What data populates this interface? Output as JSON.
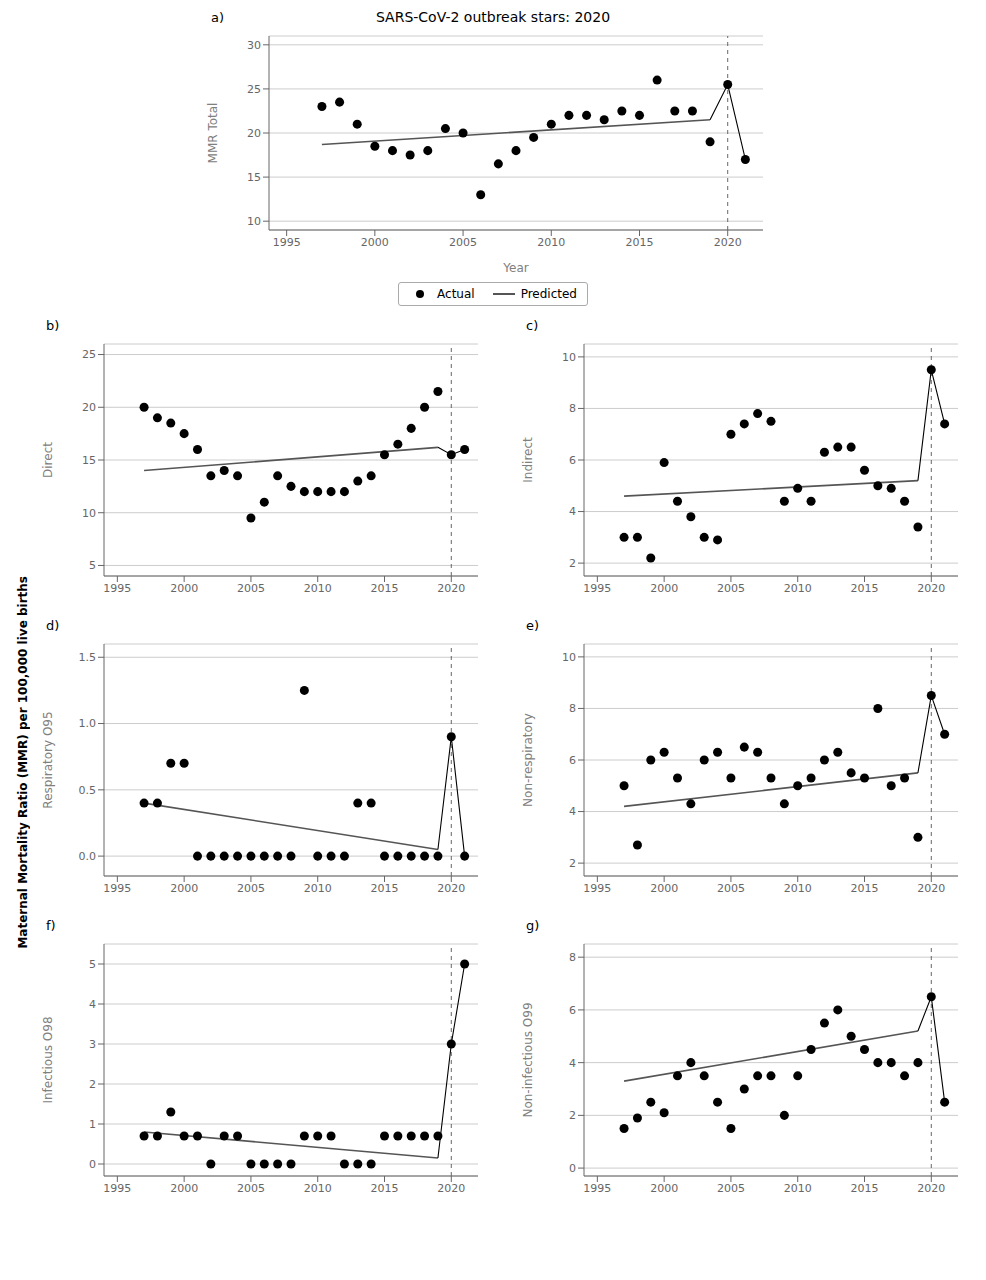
{
  "ylabel": "Maternal Mortality Ratio (MMR) per 100,000 live births",
  "chart_data": [
    {
      "type": "scatter",
      "title": "SARS-CoV-2 outbreak stars: 2020",
      "ylabel": "MMR Total",
      "xlabel": "Year",
      "xlim": [
        1994,
        2022
      ],
      "xticks": [
        1995,
        2000,
        2005,
        2010,
        2015,
        2020
      ],
      "ylim": [
        9,
        31
      ],
      "yticks": [
        10,
        15,
        20,
        25,
        30
      ],
      "grid": true,
      "legend": "bottom",
      "annotations": [
        {
          "text": "a)"
        },
        {
          "type": "vline",
          "x": 2020,
          "color": "#666666",
          "line_style": "dashed"
        }
      ],
      "series": [
        {
          "name": "Actual",
          "type": "scatter",
          "color": "#000000",
          "x": [
            1997,
            1998,
            1999,
            2000,
            2001,
            2002,
            2003,
            2004,
            2005,
            2006,
            2007,
            2008,
            2009,
            2010,
            2011,
            2012,
            2013,
            2014,
            2015,
            2016,
            2017,
            2018,
            2019,
            2020,
            2021
          ],
          "values": [
            23.0,
            23.5,
            21.0,
            18.5,
            18.0,
            17.5,
            18.0,
            20.5,
            20.0,
            13.0,
            16.5,
            18.0,
            19.5,
            21.0,
            22.0,
            22.0,
            21.5,
            22.5,
            22.0,
            26.0,
            22.5,
            22.5,
            19.0,
            25.5,
            17.0
          ]
        },
        {
          "name": "Predicted",
          "type": "line",
          "color": "#555555",
          "x": [
            1997,
            2019
          ],
          "values": [
            18.7,
            21.5
          ]
        },
        {
          "type": "line",
          "color": "#000000",
          "x": [
            2019,
            2020,
            2021
          ],
          "values": [
            21.5,
            25.5,
            17.0
          ]
        }
      ]
    },
    {
      "type": "scatter",
      "ylabel": "Direct",
      "xlim": [
        1994,
        2022
      ],
      "xticks": [
        1995,
        2000,
        2005,
        2010,
        2015,
        2020
      ],
      "ylim": [
        4,
        26
      ],
      "yticks": [
        5,
        10,
        15,
        20,
        25
      ],
      "grid": true,
      "annotations": [
        {
          "text": "b)"
        },
        {
          "type": "vline",
          "x": 2020,
          "color": "#666666",
          "line_style": "dashed"
        }
      ],
      "series": [
        {
          "name": "Actual",
          "type": "scatter",
          "color": "#000000",
          "x": [
            1997,
            1998,
            1999,
            2000,
            2001,
            2002,
            2003,
            2004,
            2005,
            2006,
            2007,
            2008,
            2009,
            2010,
            2011,
            2012,
            2013,
            2014,
            2015,
            2016,
            2017,
            2018,
            2019,
            2020,
            2021
          ],
          "values": [
            20.0,
            19.0,
            18.5,
            17.5,
            16.0,
            13.5,
            14.0,
            13.5,
            9.5,
            11.0,
            13.5,
            12.5,
            12.0,
            12.0,
            12.0,
            12.0,
            13.0,
            13.5,
            15.5,
            16.5,
            18.0,
            20.0,
            21.5,
            15.5,
            16.0
          ]
        },
        {
          "name": "Predicted",
          "type": "line",
          "color": "#555555",
          "x": [
            1997,
            2019
          ],
          "values": [
            14.0,
            16.2
          ]
        },
        {
          "type": "line",
          "color": "#000000",
          "x": [
            2019,
            2020,
            2021
          ],
          "values": [
            16.2,
            15.5,
            16.0
          ]
        }
      ]
    },
    {
      "type": "scatter",
      "ylabel": "Indirect",
      "xlim": [
        1994,
        2022
      ],
      "xticks": [
        1995,
        2000,
        2005,
        2010,
        2015,
        2020
      ],
      "ylim": [
        1.5,
        10.5
      ],
      "yticks": [
        2,
        4,
        6,
        8,
        10
      ],
      "grid": true,
      "annotations": [
        {
          "text": "c)"
        },
        {
          "type": "vline",
          "x": 2020,
          "color": "#666666",
          "line_style": "dashed"
        }
      ],
      "series": [
        {
          "name": "Actual",
          "type": "scatter",
          "color": "#000000",
          "x": [
            1997,
            1998,
            1999,
            2000,
            2001,
            2002,
            2003,
            2004,
            2005,
            2006,
            2007,
            2008,
            2009,
            2010,
            2011,
            2012,
            2013,
            2014,
            2015,
            2016,
            2017,
            2018,
            2019,
            2020,
            2021
          ],
          "values": [
            3.0,
            3.0,
            2.2,
            5.9,
            4.4,
            3.8,
            3.0,
            2.9,
            7.0,
            7.4,
            7.8,
            7.5,
            4.4,
            4.9,
            4.4,
            6.3,
            6.5,
            6.5,
            5.6,
            5.0,
            4.9,
            4.4,
            3.4,
            9.5,
            7.4
          ]
        },
        {
          "name": "Predicted",
          "type": "line",
          "color": "#555555",
          "x": [
            1997,
            2019
          ],
          "values": [
            4.6,
            5.2
          ]
        },
        {
          "type": "line",
          "color": "#000000",
          "x": [
            2019,
            2020,
            2021
          ],
          "values": [
            5.2,
            9.5,
            7.4
          ]
        }
      ]
    },
    {
      "type": "scatter",
      "ylabel": "Respiratory O95",
      "xlim": [
        1994,
        2022
      ],
      "xticks": [
        1995,
        2000,
        2005,
        2010,
        2015,
        2020
      ],
      "ylim": [
        -0.15,
        1.6
      ],
      "yticks": [
        {
          "value": 0,
          "label": "0.0"
        },
        0.5,
        {
          "value": 1,
          "label": "1.0"
        },
        1.5
      ],
      "grid": true,
      "annotations": [
        {
          "text": "d)"
        },
        {
          "type": "vline",
          "x": 2020,
          "color": "#666666",
          "line_style": "dashed"
        }
      ],
      "series": [
        {
          "name": "Actual",
          "type": "scatter",
          "color": "#000000",
          "x": [
            1997,
            1998,
            1999,
            2000,
            2001,
            2002,
            2003,
            2004,
            2005,
            2006,
            2007,
            2008,
            2009,
            2010,
            2011,
            2012,
            2013,
            2014,
            2015,
            2016,
            2017,
            2018,
            2019,
            2020,
            2021
          ],
          "values": [
            0.4,
            0.4,
            0.7,
            0.7,
            0.0,
            0.0,
            0.0,
            0.0,
            0.0,
            0.0,
            0.0,
            0.0,
            1.25,
            0.0,
            0.0,
            0.0,
            0.4,
            0.4,
            0.0,
            0.0,
            0.0,
            0.0,
            0.0,
            0.9,
            0.0
          ]
        },
        {
          "name": "Predicted",
          "type": "line",
          "color": "#555555",
          "x": [
            1997,
            2019
          ],
          "values": [
            0.4,
            0.05
          ]
        },
        {
          "type": "line",
          "color": "#000000",
          "x": [
            2019,
            2020,
            2021
          ],
          "values": [
            0.05,
            0.9,
            0.0
          ]
        }
      ]
    },
    {
      "type": "scatter",
      "ylabel": "Non-respiratory",
      "xlim": [
        1994,
        2022
      ],
      "xticks": [
        1995,
        2000,
        2005,
        2010,
        2015,
        2020
      ],
      "ylim": [
        1.5,
        10.5
      ],
      "yticks": [
        2,
        4,
        6,
        8,
        10
      ],
      "grid": true,
      "annotations": [
        {
          "text": "e)"
        },
        {
          "type": "vline",
          "x": 2020,
          "color": "#666666",
          "line_style": "dashed"
        }
      ],
      "series": [
        {
          "name": "Actual",
          "type": "scatter",
          "color": "#000000",
          "x": [
            1997,
            1998,
            1999,
            2000,
            2001,
            2002,
            2003,
            2004,
            2005,
            2006,
            2007,
            2008,
            2009,
            2010,
            2011,
            2012,
            2013,
            2014,
            2015,
            2016,
            2017,
            2018,
            2019,
            2020,
            2021
          ],
          "values": [
            5.0,
            2.7,
            6.0,
            6.3,
            5.3,
            4.3,
            6.0,
            6.3,
            5.3,
            6.5,
            6.3,
            5.3,
            4.3,
            5.0,
            5.3,
            6.0,
            6.3,
            5.5,
            5.3,
            8.0,
            5.0,
            5.3,
            3.0,
            8.5,
            7.0
          ]
        },
        {
          "name": "Predicted",
          "type": "line",
          "color": "#555555",
          "x": [
            1997,
            2019
          ],
          "values": [
            4.2,
            5.5
          ]
        },
        {
          "type": "line",
          "color": "#000000",
          "x": [
            2019,
            2020,
            2021
          ],
          "values": [
            5.5,
            8.5,
            7.0
          ]
        }
      ]
    },
    {
      "type": "scatter",
      "ylabel": "Infectious O98",
      "xlim": [
        1994,
        2022
      ],
      "xticks": [
        1995,
        2000,
        2005,
        2010,
        2015,
        2020
      ],
      "ylim": [
        -0.3,
        5.5
      ],
      "yticks": [
        0,
        1,
        2,
        3,
        4,
        5
      ],
      "grid": true,
      "annotations": [
        {
          "text": "f)"
        },
        {
          "type": "vline",
          "x": 2020,
          "color": "#666666",
          "line_style": "dashed"
        }
      ],
      "series": [
        {
          "name": "Actual",
          "type": "scatter",
          "color": "#000000",
          "x": [
            1997,
            1998,
            1999,
            2000,
            2001,
            2002,
            2003,
            2004,
            2005,
            2006,
            2007,
            2008,
            2009,
            2010,
            2011,
            2012,
            2013,
            2014,
            2015,
            2016,
            2017,
            2018,
            2019,
            2020,
            2021
          ],
          "values": [
            0.7,
            0.7,
            1.3,
            0.7,
            0.7,
            0.0,
            0.7,
            0.7,
            0.0,
            0.0,
            0.0,
            0.0,
            0.7,
            0.7,
            0.7,
            0.0,
            0.0,
            0.0,
            0.7,
            0.7,
            0.7,
            0.7,
            0.7,
            3.0,
            5.0
          ]
        },
        {
          "name": "Predicted",
          "type": "line",
          "color": "#555555",
          "x": [
            1997,
            2019
          ],
          "values": [
            0.8,
            0.15
          ]
        },
        {
          "type": "line",
          "color": "#000000",
          "x": [
            2019,
            2020,
            2021
          ],
          "values": [
            0.15,
            3.0,
            5.0
          ]
        }
      ]
    },
    {
      "type": "scatter",
      "ylabel": "Non-infectious O99",
      "xlim": [
        1994,
        2022
      ],
      "xticks": [
        1995,
        2000,
        2005,
        2010,
        2015,
        2020
      ],
      "ylim": [
        -0.3,
        8.5
      ],
      "yticks": [
        0,
        2,
        4,
        6,
        8
      ],
      "grid": true,
      "annotations": [
        {
          "text": "g)"
        },
        {
          "type": "vline",
          "x": 2020,
          "color": "#666666",
          "line_style": "dashed"
        }
      ],
      "series": [
        {
          "name": "Actual",
          "type": "scatter",
          "color": "#000000",
          "x": [
            1997,
            1998,
            1999,
            2000,
            2001,
            2002,
            2003,
            2004,
            2005,
            2006,
            2007,
            2008,
            2009,
            2010,
            2011,
            2012,
            2013,
            2014,
            2015,
            2016,
            2017,
            2018,
            2019,
            2020,
            2021
          ],
          "values": [
            1.5,
            1.9,
            2.5,
            2.1,
            3.5,
            4.0,
            3.5,
            2.5,
            1.5,
            3.0,
            3.5,
            3.5,
            2.0,
            3.5,
            4.5,
            5.5,
            6.0,
            5.0,
            4.5,
            4.0,
            4.0,
            3.5,
            4.0,
            6.5,
            2.5
          ]
        },
        {
          "name": "Predicted",
          "type": "line",
          "color": "#555555",
          "x": [
            1997,
            2019
          ],
          "values": [
            3.3,
            5.2
          ]
        },
        {
          "type": "line",
          "color": "#000000",
          "x": [
            2019,
            2020,
            2021
          ],
          "values": [
            5.2,
            6.5,
            2.5
          ]
        }
      ]
    }
  ]
}
